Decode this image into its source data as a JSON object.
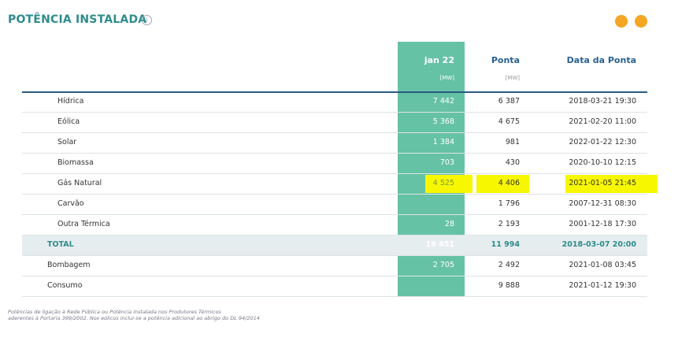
{
  "header": {
    "title": "POTÊNCIA INSTALADA",
    "info": "i"
  },
  "table": {
    "columns": [
      {
        "title": "jan 22",
        "unit": "[MW]"
      },
      {
        "title": "Ponta",
        "unit": "[MW]"
      },
      {
        "title": "Data da Ponta"
      }
    ],
    "rows": [
      {
        "label": "Hídrica",
        "value": "7 442",
        "peak": "6 387",
        "date": "2018-03-21 19:30",
        "level": "sub"
      },
      {
        "label": "Eólica",
        "value": "5 368",
        "peak": "4 675",
        "date": "2021-02-20 11:00",
        "level": "sub"
      },
      {
        "label": "Solar",
        "value": "1 384",
        "peak": "981",
        "date": "2022-01-22 12:30",
        "level": "sub"
      },
      {
        "label": "Biomassa",
        "value": "703",
        "peak": "430",
        "date": "2020-10-10 12:15",
        "level": "sub"
      },
      {
        "label": "Gás Natural",
        "value": "4 525",
        "peak": "4 406",
        "date": "2021-01-05 21:45",
        "level": "sub",
        "highlight": true
      },
      {
        "label": "Carvão",
        "value": null,
        "peak": "1 796",
        "date": "2007-12-31 08:30",
        "level": "sub"
      },
      {
        "label": "Outra Térmica",
        "value": "28",
        "peak": "2 193",
        "date": "2001-12-18 17:30",
        "level": "sub"
      },
      {
        "label": "TOTAL",
        "value": "19 451",
        "peak": "11 994",
        "date": "2018-03-07 20:00",
        "level": "total"
      },
      {
        "label": "Bombagem",
        "value": "2 705",
        "peak": "2 492",
        "date": "2021-01-08 03:45",
        "level": "top"
      },
      {
        "label": "Consumo",
        "value": null,
        "peak": "9 888",
        "date": "2021-01-12 19:30",
        "level": "top"
      }
    ]
  },
  "footnote": [
    "Potências de ligação à Rede Pública ou Potência instalada nos Produtores Térmicos",
    "aderentes à Portaria 399/2002. Nos eólicos inclui-se a potência adicional ao abrigo do DL 94/2014"
  ]
}
